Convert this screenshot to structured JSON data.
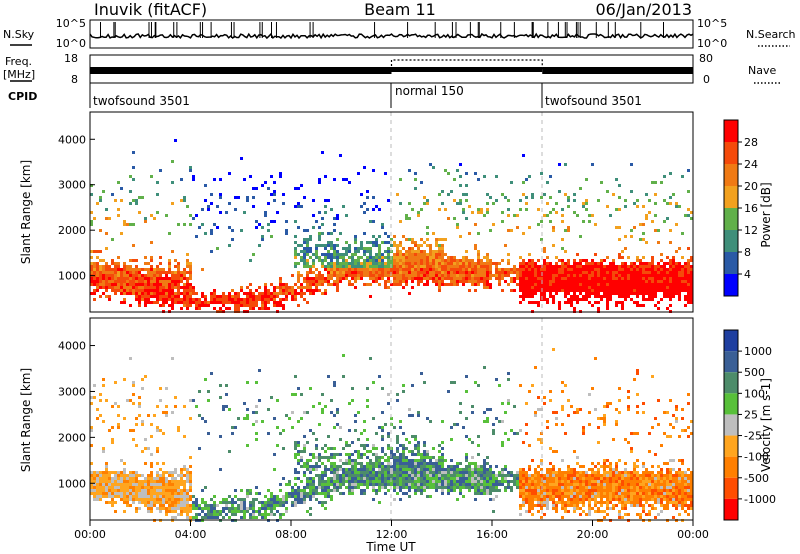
{
  "header": {
    "station": "Inuvik (fitACF)",
    "beam": "Beam 11",
    "date": "06/Jan/2013"
  },
  "noise_panel": {
    "left_label": "N.Sky",
    "right_label": "N.Search",
    "left_ticks": [
      "10^5",
      "10^0"
    ],
    "right_ticks": [
      "10^5",
      "10^0"
    ]
  },
  "freq_panel": {
    "left_label": "Freq.",
    "left_unit": "[MHz]",
    "right_label": "Nave",
    "left_ticks": [
      "18",
      "8"
    ],
    "right_ticks": [
      "80",
      "0"
    ]
  },
  "cpid": {
    "label": "CPID",
    "segments": [
      {
        "name": "twofsound 3501",
        "start": 0,
        "end": 12
      },
      {
        "name": "normal 150",
        "start": 12,
        "end": 18
      },
      {
        "name": "twofsound 3501",
        "start": 18,
        "end": 24
      }
    ]
  },
  "colors": {
    "power_scale": [
      "#0000ff",
      "#2a5aa6",
      "#3f8f7a",
      "#61b04a",
      "#f2a11f",
      "#f07a14",
      "#f54a0a",
      "#ff0000"
    ],
    "velocity_scale": [
      "#1f3fa0",
      "#3a5f96",
      "#4d8c6a",
      "#58c03a",
      "#bebebe",
      "#ffa51f",
      "#ff7f00",
      "#ff4d00",
      "#ff0000"
    ]
  },
  "chart_data": [
    {
      "type": "heatmap",
      "ylabel": "Slant Range [km]",
      "yticks": [
        "1000",
        "2000",
        "3000",
        "4000"
      ],
      "ylim": [
        200,
        4600
      ],
      "xlim": [
        0,
        24
      ],
      "colorbar_label": "Power [dB]",
      "colorbar_ticks": [
        "4",
        "8",
        "12",
        "16",
        "20",
        "24",
        "28"
      ],
      "colorbar_range": [
        0,
        32
      ]
    },
    {
      "type": "heatmap",
      "ylabel": "Slant Range [km]",
      "yticks": [
        "1000",
        "2000",
        "3000",
        "4000"
      ],
      "ylim": [
        200,
        4600
      ],
      "xlim": [
        0,
        24
      ],
      "xlabel": "Time UT",
      "xticks": [
        "00:00",
        "04:00",
        "08:00",
        "12:00",
        "16:00",
        "20:00",
        "00:00"
      ],
      "colorbar_label": "Velocity [m s-1]",
      "colorbar_ticks": [
        "1000",
        "500",
        "100",
        "25",
        "-25",
        "-100",
        "-500",
        "-1000"
      ]
    }
  ]
}
